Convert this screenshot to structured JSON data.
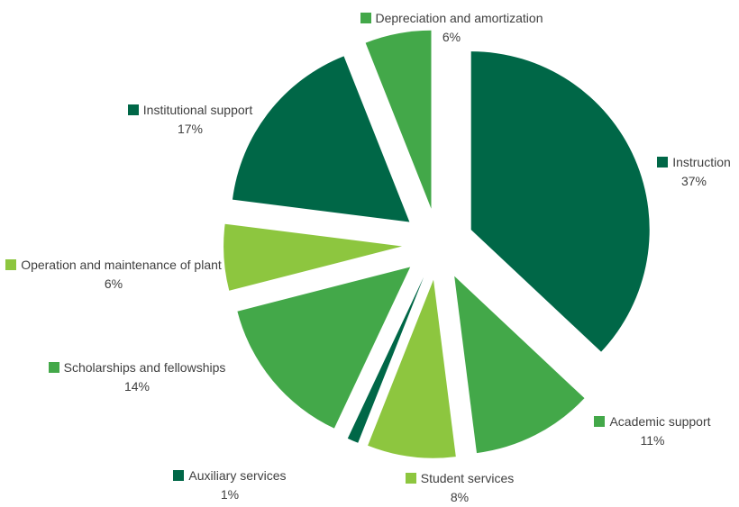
{
  "chart_data": {
    "type": "pie",
    "exploded": true,
    "series": [
      {
        "name": "Instruction",
        "percent_label": "37%",
        "value": 37,
        "color": "#006747"
      },
      {
        "name": "Academic support",
        "percent_label": "11%",
        "value": 11,
        "color": "#43A849"
      },
      {
        "name": "Student services",
        "percent_label": "8%",
        "value": 8,
        "color": "#8DC63F"
      },
      {
        "name": "Auxiliary services",
        "percent_label": "1%",
        "value": 1,
        "color": "#006747"
      },
      {
        "name": "Scholarships and fellowships",
        "percent_label": "14%",
        "value": 14,
        "color": "#43A849"
      },
      {
        "name": "Operation and maintenance of plant",
        "percent_label": "6%",
        "value": 6,
        "color": "#8DC63F"
      },
      {
        "name": "Institutional  support",
        "percent_label": "17%",
        "value": 17,
        "color": "#006747"
      },
      {
        "name": "Depreciation and amortization",
        "percent_label": "6%",
        "value": 6,
        "color": "#43A849"
      }
    ]
  }
}
